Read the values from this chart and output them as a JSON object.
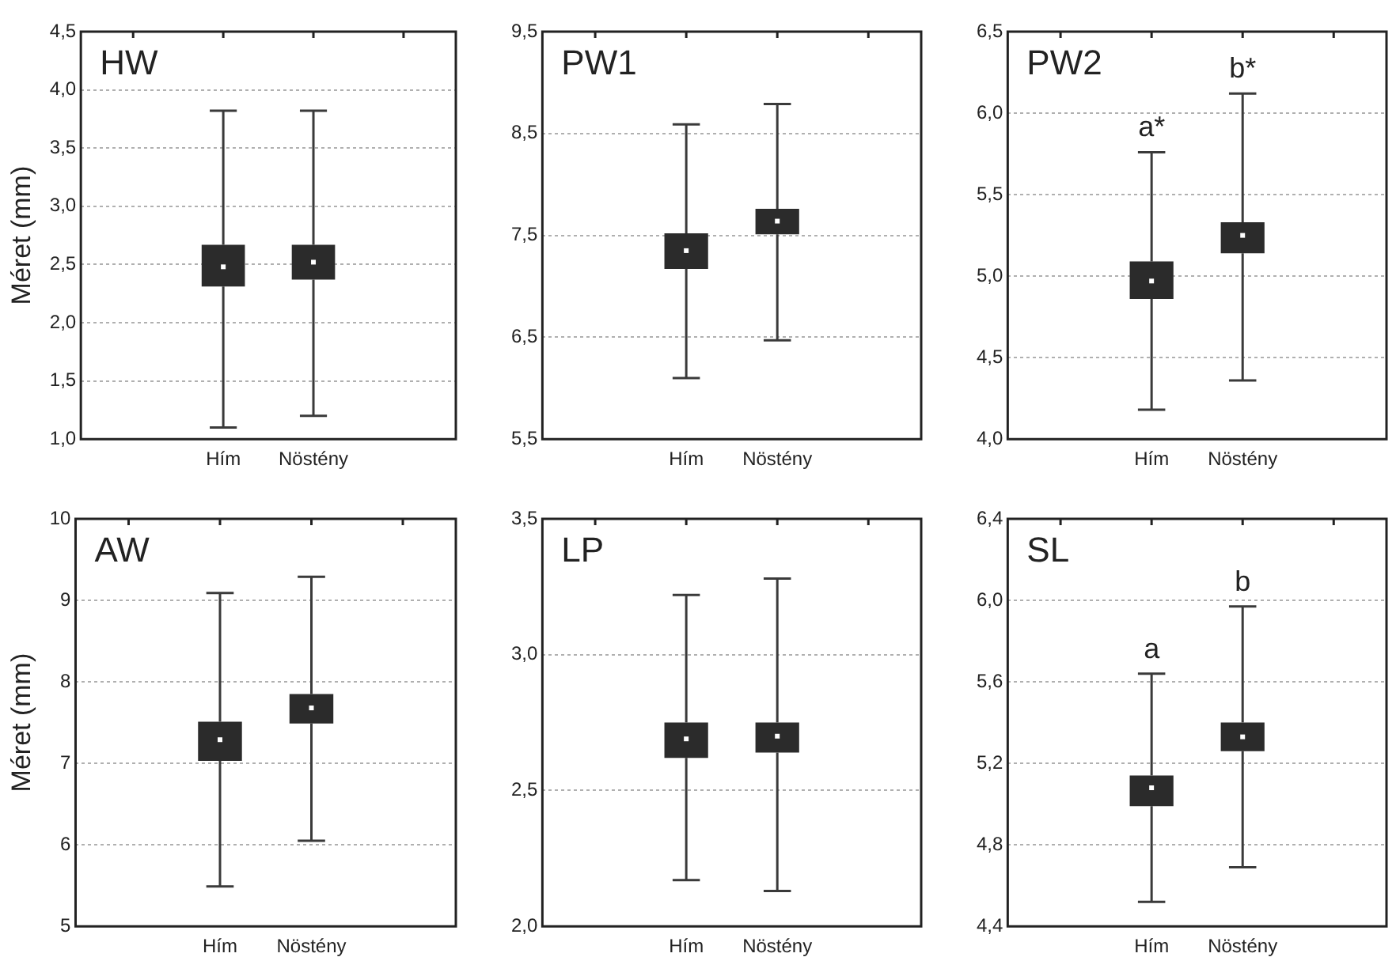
{
  "chart_data": [
    {
      "type": "box",
      "title": "HW",
      "ylabel": "Méret (mm)",
      "categories": [
        "Hím",
        "Nöstény"
      ],
      "color": "#2b2b2b",
      "grid": "y",
      "ylim": [
        1.0,
        4.5
      ],
      "yticks": [
        {
          "value": 1.0,
          "label": "1,0"
        },
        {
          "value": 1.5,
          "label": "1,5"
        },
        {
          "value": 2.0,
          "label": "2,0"
        },
        {
          "value": 2.5,
          "label": "2,5"
        },
        {
          "value": 3.0,
          "label": "3,0"
        },
        {
          "value": 3.5,
          "label": "3,5"
        },
        {
          "value": 4.0,
          "label": "4,0"
        },
        {
          "value": 4.5,
          "label": "4,5"
        }
      ],
      "boxes": [
        {
          "low": 1.1,
          "q1": 2.31,
          "median": 2.48,
          "q3": 2.67,
          "high": 3.82
        },
        {
          "low": 1.2,
          "q1": 2.37,
          "median": 2.52,
          "q3": 2.67,
          "high": 3.82
        }
      ]
    },
    {
      "type": "box",
      "title": "PW1",
      "categories": [
        "Hím",
        "Nöstény"
      ],
      "color": "#2b2b2b",
      "grid": "y",
      "ylim": [
        5.5,
        9.5
      ],
      "yticks": [
        {
          "value": 5.5,
          "label": "5,5"
        },
        {
          "value": 6.5,
          "label": "6,5"
        },
        {
          "value": 7.5,
          "label": "7,5"
        },
        {
          "value": 8.5,
          "label": "8,5"
        },
        {
          "value": 9.5,
          "label": "9,5"
        }
      ],
      "boxes": [
        {
          "low": 6.1,
          "q1": 7.17,
          "median": 7.35,
          "q3": 7.52,
          "high": 8.59
        },
        {
          "low": 6.47,
          "q1": 7.51,
          "median": 7.64,
          "q3": 7.76,
          "high": 8.79
        }
      ]
    },
    {
      "type": "box",
      "title": "PW2",
      "categories": [
        "Hím",
        "Nöstény"
      ],
      "color": "#2b2b2b",
      "grid": "y",
      "ylim": [
        4.0,
        6.5
      ],
      "yticks": [
        {
          "value": 4.0,
          "label": "4,0"
        },
        {
          "value": 4.5,
          "label": "4,5"
        },
        {
          "value": 5.0,
          "label": "5,0"
        },
        {
          "value": 5.5,
          "label": "5,5"
        },
        {
          "value": 6.0,
          "label": "6,0"
        },
        {
          "value": 6.5,
          "label": "6,5"
        }
      ],
      "boxes": [
        {
          "low": 4.18,
          "q1": 4.86,
          "median": 4.97,
          "q3": 5.09,
          "high": 5.76
        },
        {
          "low": 4.36,
          "q1": 5.14,
          "median": 5.25,
          "q3": 5.33,
          "high": 6.12
        }
      ],
      "annotations": [
        {
          "text": "a*",
          "x": "Hím",
          "y": 5.76
        },
        {
          "text": "b*",
          "x": "Nöstény",
          "y": 6.12
        }
      ]
    },
    {
      "type": "box",
      "title": "AW",
      "ylabel": "Méret (mm)",
      "categories": [
        "Hím",
        "Nöstény"
      ],
      "color": "#2b2b2b",
      "grid": "y",
      "ylim": [
        5,
        10
      ],
      "yticks": [
        5,
        6,
        7,
        8,
        9,
        10
      ],
      "boxes": [
        {
          "low": 5.49,
          "q1": 7.03,
          "median": 7.29,
          "q3": 7.51,
          "high": 9.09
        },
        {
          "low": 6.05,
          "q1": 7.49,
          "median": 7.68,
          "q3": 7.85,
          "high": 9.29
        }
      ]
    },
    {
      "type": "box",
      "title": "LP",
      "categories": [
        "Hím",
        "Nöstény"
      ],
      "color": "#2b2b2b",
      "grid": "y",
      "ylim": [
        2.0,
        3.5
      ],
      "yticks": [
        {
          "value": 2.0,
          "label": "2,0"
        },
        {
          "value": 2.5,
          "label": "2,5"
        },
        {
          "value": 3.0,
          "label": "3,0"
        },
        {
          "value": 3.5,
          "label": "3,5"
        }
      ],
      "boxes": [
        {
          "low": 2.17,
          "q1": 2.62,
          "median": 2.69,
          "q3": 2.75,
          "high": 3.22
        },
        {
          "low": 2.13,
          "q1": 2.64,
          "median": 2.7,
          "q3": 2.75,
          "high": 3.28
        }
      ]
    },
    {
      "type": "box",
      "title": "SL",
      "categories": [
        "Hím",
        "Nöstény"
      ],
      "color": "#2b2b2b",
      "grid": "y",
      "ylim": [
        4.4,
        6.4
      ],
      "yticks": [
        {
          "value": 4.4,
          "label": "4,4"
        },
        {
          "value": 4.8,
          "label": "4,8"
        },
        {
          "value": 5.2,
          "label": "5,2"
        },
        {
          "value": 5.6,
          "label": "5,6"
        },
        {
          "value": 6.0,
          "label": "6,0"
        },
        {
          "value": 6.4,
          "label": "6,4"
        }
      ],
      "boxes": [
        {
          "low": 4.52,
          "q1": 4.99,
          "median": 5.08,
          "q3": 5.14,
          "high": 5.64
        },
        {
          "low": 4.69,
          "q1": 5.26,
          "median": 5.33,
          "q3": 5.4,
          "high": 5.97
        }
      ],
      "annotations": [
        {
          "text": "a",
          "x": "Hím",
          "y": 5.64
        },
        {
          "text": "b",
          "x": "Nöstény",
          "y": 5.97
        }
      ]
    }
  ]
}
